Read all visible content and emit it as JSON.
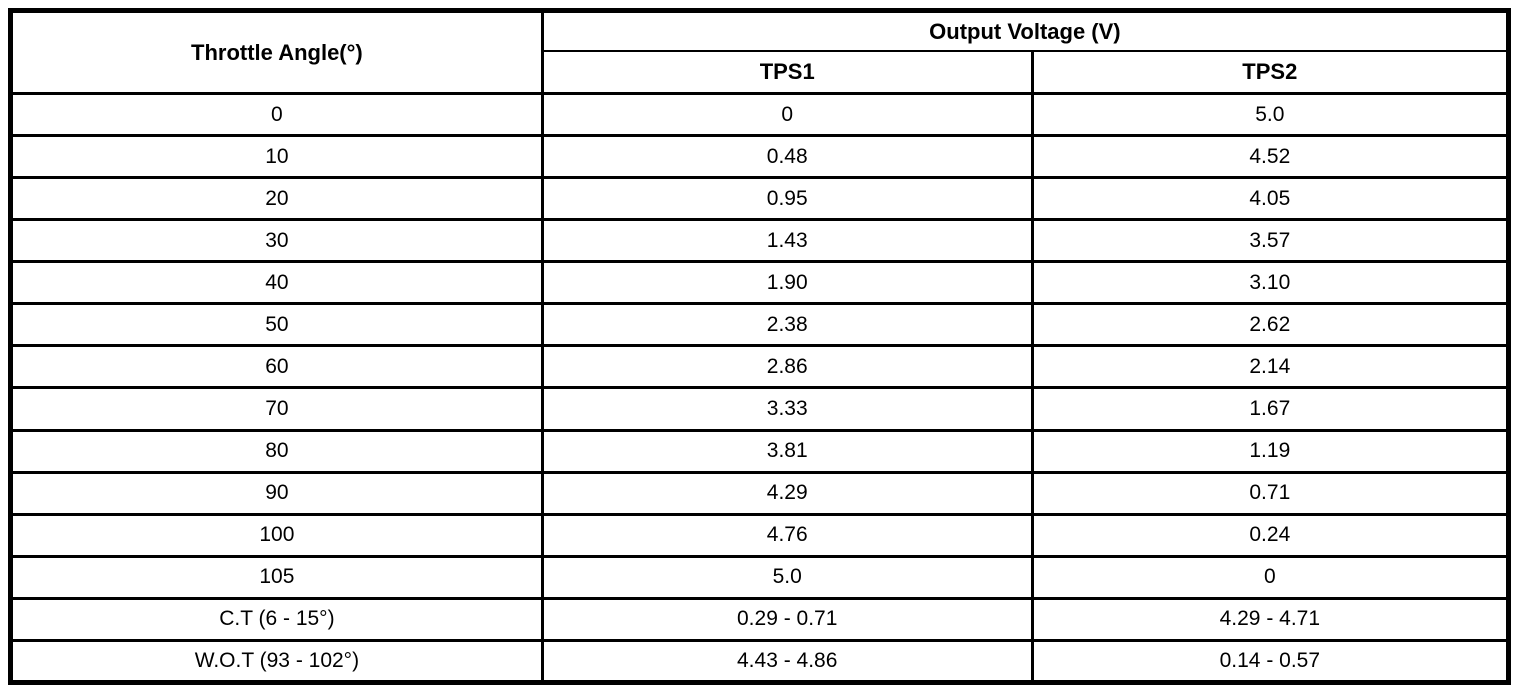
{
  "table": {
    "header": {
      "angle_label": "Throttle Angle(°)",
      "voltage_group_label": "Output Voltage (V)",
      "tps1_label": "TPS1",
      "tps2_label": "TPS2"
    },
    "rows": [
      {
        "angle": "0",
        "tps1": "0",
        "tps2": "5.0"
      },
      {
        "angle": "10",
        "tps1": "0.48",
        "tps2": "4.52"
      },
      {
        "angle": "20",
        "tps1": "0.95",
        "tps2": "4.05"
      },
      {
        "angle": "30",
        "tps1": "1.43",
        "tps2": "3.57"
      },
      {
        "angle": "40",
        "tps1": "1.90",
        "tps2": "3.10"
      },
      {
        "angle": "50",
        "tps1": "2.38",
        "tps2": "2.62"
      },
      {
        "angle": "60",
        "tps1": "2.86",
        "tps2": "2.14"
      },
      {
        "angle": "70",
        "tps1": "3.33",
        "tps2": "1.67"
      },
      {
        "angle": "80",
        "tps1": "3.81",
        "tps2": "1.19"
      },
      {
        "angle": "90",
        "tps1": "4.29",
        "tps2": "0.71"
      },
      {
        "angle": "100",
        "tps1": "4.76",
        "tps2": "0.24"
      },
      {
        "angle": "105",
        "tps1": "5.0",
        "tps2": "0"
      },
      {
        "angle": "C.T (6 - 15°)",
        "tps1": "0.29 - 0.71",
        "tps2": "4.29 - 4.71"
      },
      {
        "angle": "W.O.T (93 - 102°)",
        "tps1": "4.43 - 4.86",
        "tps2": "0.14 - 0.57"
      }
    ],
    "colors": {
      "border": "#000000",
      "text": "#000000",
      "background": "#ffffff"
    }
  }
}
